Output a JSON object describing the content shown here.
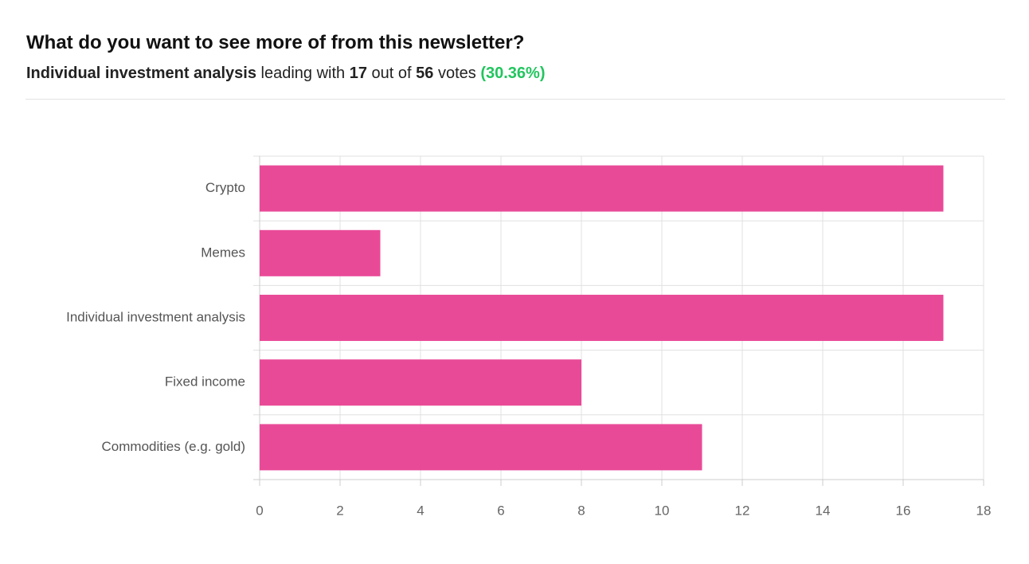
{
  "header": {
    "title": "What do you want to see more of from this newsletter?",
    "summary": {
      "leader": "Individual investment analysis",
      "text1": "leading with",
      "votes": 17,
      "text2": "out of",
      "total": 56,
      "text3": "votes",
      "percent": "(30.36%)"
    }
  },
  "chart_data": {
    "type": "bar",
    "orientation": "horizontal",
    "categories": [
      "Crypto",
      "Memes",
      "Individual investment analysis",
      "Fixed income",
      "Commodities (e.g. gold)"
    ],
    "values": [
      17,
      3,
      17,
      8,
      11
    ],
    "color": "#e94a98",
    "xlim": [
      0,
      18
    ],
    "xticks": [
      0,
      2,
      4,
      6,
      8,
      10,
      12,
      14,
      16,
      18
    ],
    "grid": true
  }
}
